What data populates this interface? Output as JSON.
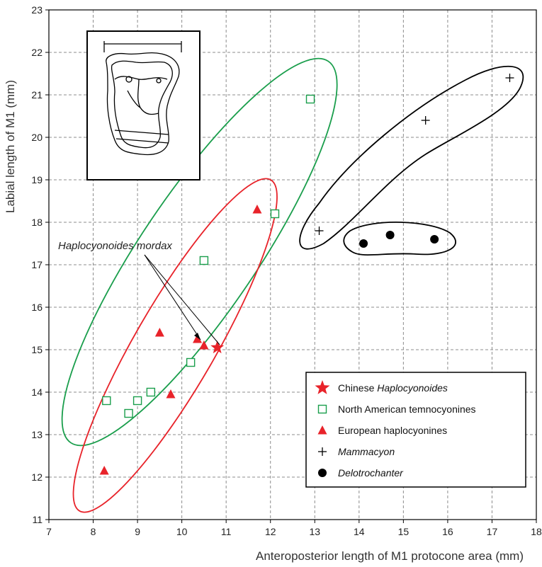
{
  "chart_data": {
    "type": "scatter",
    "xlabel": "Anteroposterior length of M1 protocone area (mm)",
    "ylabel": "Labial length of M1 (mm)",
    "xlim": [
      7,
      18
    ],
    "ylim": [
      11,
      23
    ],
    "x_ticks": [
      "7",
      "8",
      "9",
      "10",
      "11",
      "12",
      "13",
      "14",
      "15",
      "16",
      "17",
      "18"
    ],
    "y_ticks": [
      "11",
      "12",
      "13",
      "14",
      "15",
      "16",
      "17",
      "18",
      "19",
      "20",
      "21",
      "22",
      "23"
    ],
    "grid": "dashed, every 1 mm",
    "legend_position": "bottom-right",
    "annotation": "Haplocyonoides mordax",
    "inset": "outline drawing of upper first molar (M1) with measurement line",
    "series": [
      {
        "name": "Chinese Haplocyonoides",
        "marker": "star",
        "color": "#e8232a",
        "points": [
          [
            10.8,
            15.05
          ]
        ]
      },
      {
        "name": "North American temnocyonines",
        "marker": "open-square",
        "color": "#1a9e4c",
        "points": [
          [
            8.3,
            13.8
          ],
          [
            8.8,
            13.5
          ],
          [
            9.0,
            13.8
          ],
          [
            9.3,
            14.0
          ],
          [
            10.2,
            14.7
          ],
          [
            10.5,
            17.1
          ],
          [
            12.1,
            18.2
          ],
          [
            12.9,
            20.9
          ]
        ]
      },
      {
        "name": "European haplocyonines",
        "marker": "filled-triangle",
        "color": "#e8232a",
        "points": [
          [
            8.25,
            12.15
          ],
          [
            9.5,
            15.4
          ],
          [
            9.75,
            13.95
          ],
          [
            10.35,
            15.25
          ],
          [
            10.5,
            15.1
          ],
          [
            11.7,
            18.3
          ]
        ]
      },
      {
        "name": "Mammacyon",
        "marker": "plus",
        "color": "#000000",
        "points": [
          [
            13.1,
            17.8
          ],
          [
            15.5,
            20.4
          ],
          [
            17.4,
            21.4
          ]
        ]
      },
      {
        "name": "Delotrochanter",
        "marker": "filled-circle",
        "color": "#000000",
        "points": [
          [
            14.1,
            17.5
          ],
          [
            14.7,
            17.7
          ],
          [
            15.7,
            17.6
          ]
        ]
      }
    ],
    "legend": [
      {
        "label": "Chinese ",
        "italic": "Haplocyonoides",
        "marker": "star",
        "color": "#e8232a"
      },
      {
        "label": "North American temnocyonines",
        "italic": "",
        "marker": "open-square",
        "color": "#1a9e4c"
      },
      {
        "label": "European haplocyonines",
        "italic": "",
        "marker": "filled-triangle",
        "color": "#e8232a"
      },
      {
        "label": "",
        "italic": "Mammacyon",
        "marker": "plus",
        "color": "#000000"
      },
      {
        "label": "",
        "italic": "Delotrochanter",
        "marker": "filled-circle",
        "color": "#000000"
      }
    ],
    "colors": {
      "red": "#e8232a",
      "green": "#1a9e4c",
      "black": "#000000",
      "grid": "#8c8c8c"
    }
  }
}
